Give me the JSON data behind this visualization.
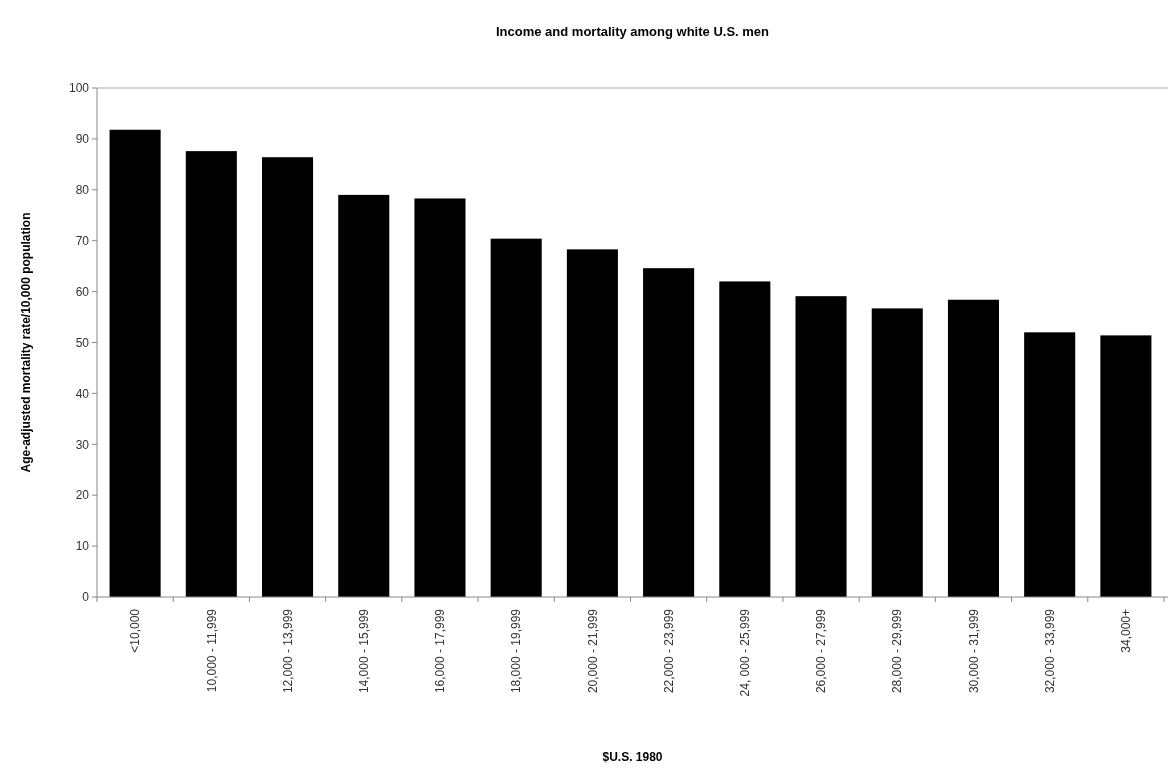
{
  "chart_data": {
    "type": "bar",
    "title": "Income and mortality among white U.S. men",
    "xlabel": "$U.S. 1980",
    "ylabel": "Age-adjusted mortality rate/10,000 population",
    "categories": [
      "<10,000",
      "10,000 - 11,999",
      "12,000 - 13,999",
      "14,000 - 15,999",
      "16,000 - 17,999",
      "18,000 - 19,999",
      "20,000 - 21,999",
      "22,000 - 23,999",
      "24, 000 - 25,999",
      "26,000 - 27,999",
      "28,000 - 29,999",
      "30,000 - 31,999",
      "32,000 - 33,999",
      "34,000+"
    ],
    "values": [
      91.8,
      87.6,
      86.4,
      79.0,
      78.3,
      70.4,
      68.3,
      64.6,
      62.0,
      59.1,
      56.7,
      58.4,
      52.0,
      51.4
    ],
    "color": "#000000",
    "ylim": [
      0,
      100
    ],
    "yticks": [
      0,
      10,
      20,
      30,
      40,
      50,
      60,
      70,
      80,
      90,
      100
    ],
    "grid": false
  }
}
